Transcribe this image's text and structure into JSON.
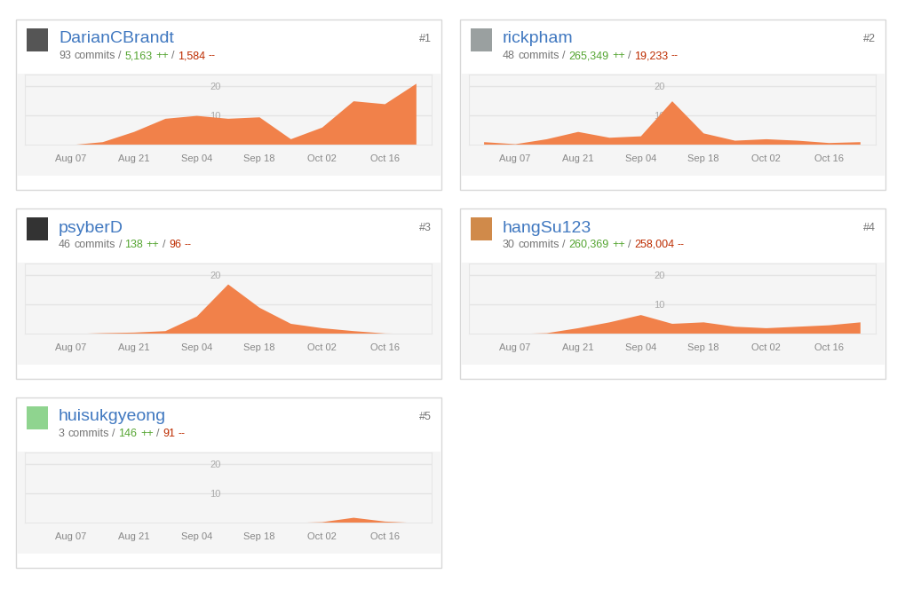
{
  "chart_data": [
    {
      "type": "area",
      "title": "DarianCBrandt",
      "subtitle": "93 commits / 5,163 ++ / 1,584 --",
      "annotations": [
        "#1"
      ],
      "categories": [
        null,
        "Aug 07",
        null,
        "Aug 21",
        null,
        "Sep 04",
        null,
        "Sep 18",
        null,
        "Oct 02",
        null,
        "Oct 16",
        null
      ],
      "values": [
        0,
        0,
        1,
        4.5,
        9,
        10,
        9,
        9.5,
        2,
        6,
        15,
        14,
        21
      ],
      "color": "#f1814a",
      "ylim": [
        0,
        24
      ],
      "yticks": [
        10,
        20
      ],
      "grid": true
    },
    {
      "type": "area",
      "title": "rickpham",
      "subtitle": "48 commits / 265,349 ++ / 19,233 --",
      "annotations": [
        "#2"
      ],
      "categories": [
        null,
        "Aug 07",
        null,
        "Aug 21",
        null,
        "Sep 04",
        null,
        "Sep 18",
        null,
        "Oct 02",
        null,
        "Oct 16",
        null
      ],
      "values": [
        1,
        0.3,
        2,
        4.5,
        2.5,
        3,
        15,
        4,
        1.5,
        2,
        1.5,
        0.7,
        1
      ],
      "color": "#f1814a",
      "ylim": [
        0,
        24
      ],
      "yticks": [
        10,
        20
      ],
      "grid": true
    },
    {
      "type": "area",
      "title": "psyberD",
      "subtitle": "46 commits / 138 ++ / 96 --",
      "annotations": [
        "#3"
      ],
      "categories": [
        null,
        "Aug 07",
        null,
        "Aug 21",
        null,
        "Sep 04",
        null,
        "Sep 18",
        null,
        "Oct 02",
        null,
        "Oct 16",
        null
      ],
      "values": [
        0,
        0,
        0.3,
        0.5,
        1,
        6,
        17,
        9,
        3.5,
        2,
        1,
        0.2,
        0
      ],
      "color": "#f1814a",
      "ylim": [
        0,
        24
      ],
      "yticks": [
        10,
        20
      ],
      "grid": true
    },
    {
      "type": "area",
      "title": "hangSu123",
      "subtitle": "30 commits / 260,369 ++ / 258,004 --",
      "annotations": [
        "#4"
      ],
      "categories": [
        null,
        "Aug 07",
        null,
        "Aug 21",
        null,
        "Sep 04",
        null,
        "Sep 18",
        null,
        "Oct 02",
        null,
        "Oct 16",
        null
      ],
      "values": [
        0,
        0,
        0.3,
        2,
        4,
        6.5,
        3.5,
        4,
        2.5,
        2,
        2.5,
        3,
        4
      ],
      "color": "#f1814a",
      "ylim": [
        0,
        24
      ],
      "yticks": [
        10,
        20
      ],
      "grid": true
    },
    {
      "type": "area",
      "title": "huisukgyeong",
      "subtitle": "3 commits / 146 ++ / 91 --",
      "annotations": [
        "#5"
      ],
      "categories": [
        null,
        "Aug 07",
        null,
        "Aug 21",
        null,
        "Sep 04",
        null,
        "Sep 18",
        null,
        "Oct 02",
        null,
        "Oct 16",
        null
      ],
      "values": [
        0,
        0,
        0,
        0,
        0,
        0,
        0,
        0,
        0,
        0.3,
        1.8,
        0.5,
        0
      ],
      "color": "#f1814a",
      "ylim": [
        0,
        24
      ],
      "yticks": [
        10,
        20
      ],
      "grid": true
    }
  ]
}
